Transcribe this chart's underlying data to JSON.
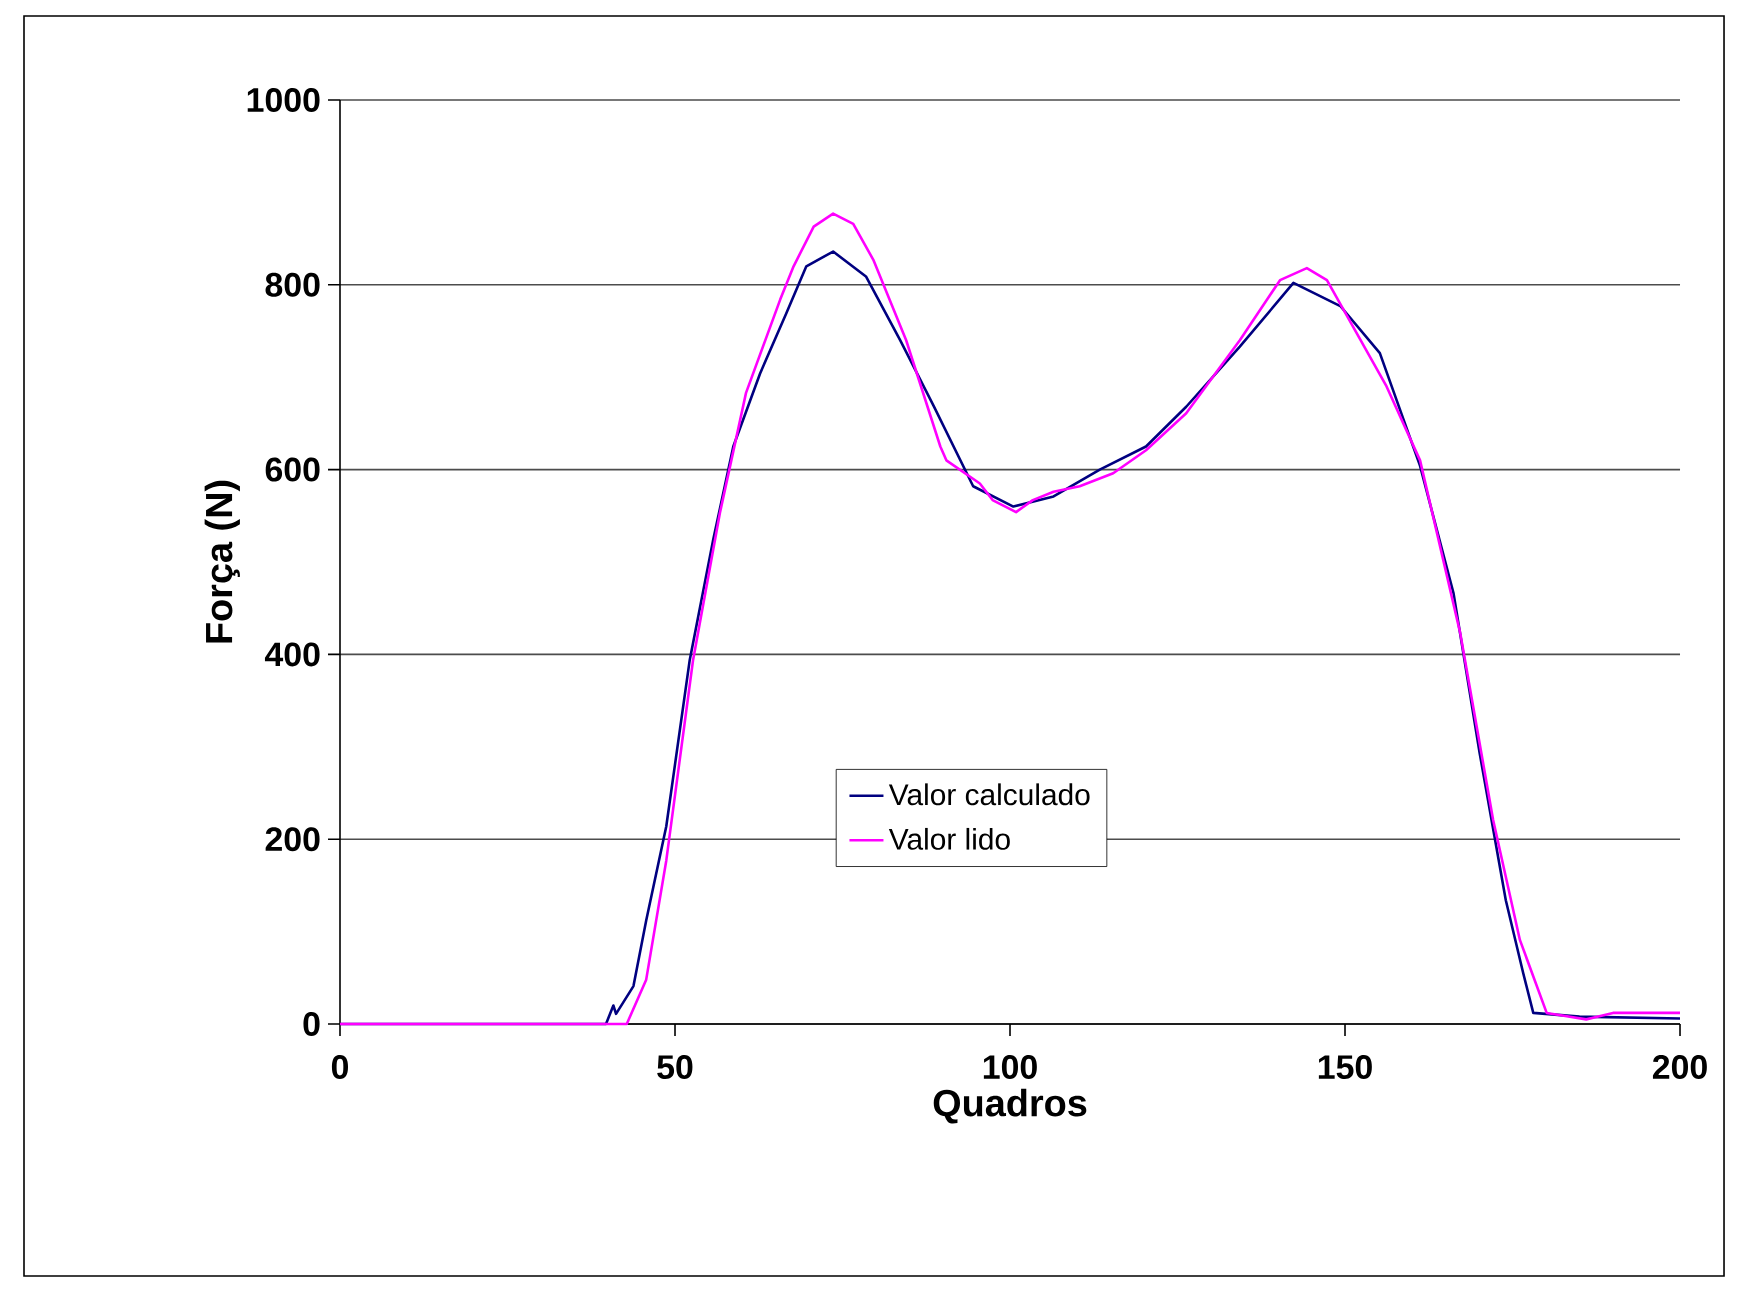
{
  "chart_data": {
    "type": "line",
    "xlabel": "Quadros",
    "ylabel": "Força (N)",
    "xlim": [
      0,
      200
    ],
    "xticks": [
      0,
      50,
      100,
      150,
      200
    ],
    "ylim": [
      0,
      1000
    ],
    "yticks": [
      0,
      200,
      400,
      600,
      800,
      1000
    ],
    "grid": "y",
    "legend": "center",
    "marker": "none",
    "line_style": "solid",
    "series": [
      {
        "name": "Valor calculado",
        "color": "#000080",
        "x": [
          0,
          39.7,
          40.8,
          41.2,
          43.8,
          45.7,
          48.7,
          52.2,
          55.7,
          58.7,
          62.7,
          66.6,
          69.6,
          73.6,
          78.5,
          83.6,
          88.6,
          94.5,
          100.5,
          106.5,
          113.4,
          120.3,
          126.3,
          134.3,
          142.3,
          149.3,
          155.2,
          161.2,
          166.2,
          170.1,
          174,
          176.6,
          178.1,
          185,
          200
        ],
        "values": [
          0,
          0,
          20,
          11,
          41,
          112,
          214,
          394,
          524,
          625,
          704,
          769,
          820,
          836,
          809,
          740,
          669,
          582,
          560,
          571,
          600,
          625,
          668,
          733,
          802,
          777,
          726,
          604,
          466,
          293,
          134,
          55,
          12,
          8,
          6
        ]
      },
      {
        "name": "Valor lido",
        "color": "#ff00ff",
        "x": [
          0,
          42.8,
          45.7,
          48.7,
          52.7,
          56.7,
          60.6,
          65.7,
          67.7,
          70.7,
          73.6,
          76.6,
          79.6,
          84.5,
          89.6,
          90.5,
          95.5,
          97.4,
          100.9,
          103.4,
          106.5,
          110.4,
          115.4,
          120.3,
          126.3,
          134.3,
          140.3,
          144.3,
          147.3,
          156.2,
          161.2,
          167.2,
          172.1,
          176.1,
          180.1,
          186,
          190,
          200
        ],
        "values": [
          0,
          0,
          48,
          177,
          394,
          553,
          683,
          784,
          820,
          863,
          877,
          866,
          827,
          740,
          625,
          610,
          585,
          567,
          554,
          567,
          576,
          582,
          596,
          621,
          661,
          740,
          805,
          818,
          805,
          690,
          610,
          423,
          221,
          91,
          12,
          5,
          12,
          12
        ]
      }
    ]
  }
}
